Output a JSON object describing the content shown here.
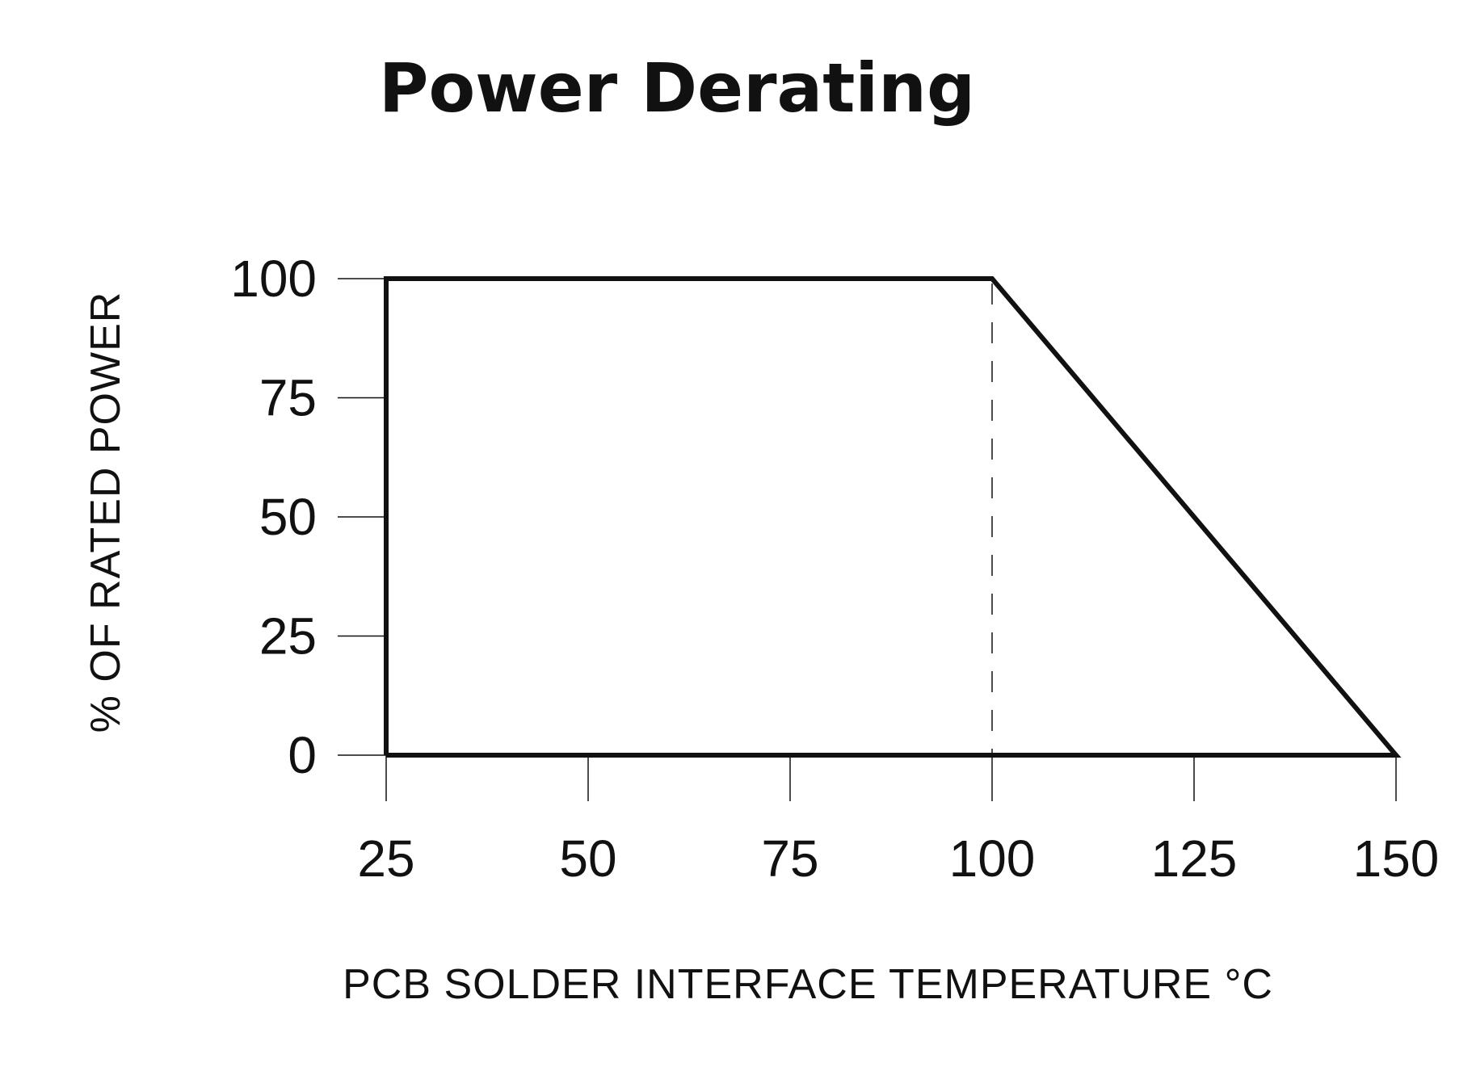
{
  "chart_data": {
    "type": "line",
    "title": "Power Derating",
    "xlabel": "PCB SOLDER INTERFACE TEMPERATURE °C",
    "ylabel": "% OF RATED POWER",
    "xlim": [
      25,
      150
    ],
    "ylim": [
      0,
      100
    ],
    "x_ticks": [
      25,
      50,
      75,
      100,
      125,
      150
    ],
    "y_ticks": [
      0,
      25,
      50,
      75,
      100
    ],
    "x_tick_labels": [
      "25",
      "50",
      "75",
      "100",
      "125",
      "150"
    ],
    "y_tick_labels": [
      "0",
      "25",
      "50",
      "75",
      "100"
    ],
    "grid": false,
    "legend": "none",
    "series": [
      {
        "x": [
          25,
          25,
          100,
          150,
          25
        ],
        "y": [
          0,
          100,
          100,
          0,
          0
        ]
      }
    ],
    "reference_lines": [
      {
        "x": 100,
        "style": "dashed"
      }
    ],
    "colors": {
      "line": "#111111"
    }
  }
}
